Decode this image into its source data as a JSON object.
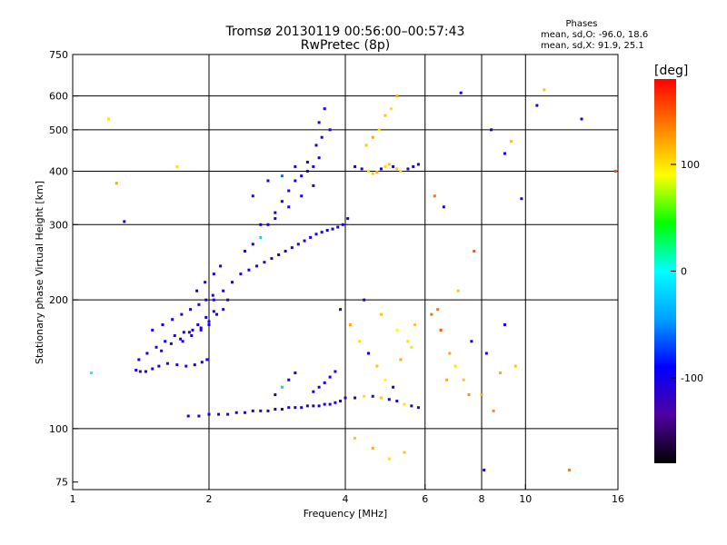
{
  "header": {
    "title": "Tromsø 20130119 00:56:00–00:57:43",
    "subtitle": "RwPretec (8p)",
    "phases_title": "Phases",
    "phases_o": "mean, sd,O:  -96.0, 18.6",
    "phases_x": "mean, sd,X:  91.9, 25.1"
  },
  "chart_data": {
    "type": "scatter",
    "title": "Tromsø 20130119 00:56:00–00:57:43",
    "subtitle": "RwPretec (8p)",
    "xlabel": "Frequency [MHz]",
    "ylabel": "Stationary phase Virtual Height [km]",
    "x_scale": "log",
    "y_scale": "log",
    "xlim": [
      1,
      16
    ],
    "ylim": [
      72,
      750
    ],
    "x_ticks": [
      1,
      2,
      4,
      6,
      8,
      10,
      16
    ],
    "y_ticks": [
      75,
      100,
      200,
      300,
      400,
      500,
      600,
      750
    ],
    "x_gridlines": [
      2,
      4,
      6,
      8,
      10
    ],
    "y_gridlines": [
      100,
      200,
      300,
      400,
      500,
      600
    ],
    "grid": true,
    "colorbar": {
      "label": "[deg]",
      "range": [
        -180,
        180
      ],
      "ticks": [
        100,
        0,
        -100
      ],
      "colors": [
        "#000000",
        "#5000a0",
        "#0000ff",
        "#00a0ff",
        "#00ffff",
        "#00ff00",
        "#ffff00",
        "#ff8000",
        "#ff0000"
      ]
    },
    "series": [
      {
        "x": [
          1.38,
          1.41,
          1.45,
          1.5,
          1.55,
          1.62,
          1.7,
          1.78,
          1.86,
          1.93,
          1.98,
          1.4,
          1.46,
          1.53,
          1.6,
          1.68,
          1.76,
          1.84,
          1.92,
          2.0,
          1.5,
          1.58,
          1.66,
          1.74,
          1.82,
          1.9,
          1.97,
          2.04,
          1.75,
          1.83,
          1.92,
          2.0,
          2.08,
          2.15,
          1.88,
          1.96,
          2.05,
          2.12,
          1.57,
          1.65,
          1.73,
          1.81,
          1.89,
          1.97,
          2.05
        ],
        "y": [
          137,
          136,
          136,
          138,
          140,
          142,
          141,
          140,
          141,
          143,
          145,
          145,
          150,
          155,
          160,
          165,
          168,
          170,
          172,
          175,
          170,
          175,
          180,
          185,
          190,
          195,
          200,
          205,
          160,
          165,
          170,
          178,
          185,
          190,
          210,
          220,
          230,
          240,
          152,
          158,
          162,
          168,
          175,
          182,
          188
        ],
        "phase": [
          -110,
          -110,
          -100,
          -110,
          -105,
          -110,
          -100,
          -110,
          -105,
          -100,
          -110,
          -100,
          -105,
          -110,
          -100,
          -110,
          -100,
          -105,
          -110,
          -100,
          -110,
          -100,
          -105,
          -110,
          -100,
          -110,
          -100,
          -105,
          -110,
          -100,
          -110,
          -105,
          -100,
          -110,
          -100,
          -105,
          -110,
          -100,
          -110,
          -105,
          -100,
          -110,
          -105,
          -100,
          -110
        ]
      },
      {
        "x": [
          2.05,
          2.15,
          2.25,
          2.35,
          2.45,
          2.55,
          2.65,
          2.75,
          2.85,
          2.95,
          3.05,
          3.15,
          3.25,
          3.35,
          3.45,
          3.55,
          3.65,
          3.75,
          3.85,
          3.95,
          4.05
        ],
        "y": [
          200,
          210,
          220,
          230,
          235,
          240,
          245,
          250,
          255,
          260,
          265,
          270,
          275,
          280,
          285,
          288,
          291,
          293,
          296,
          300,
          310
        ],
        "phase": [
          -110,
          -105,
          -100,
          -110,
          -105,
          -100,
          -110,
          -105,
          -100,
          -110,
          -105,
          -100,
          -110,
          -100,
          -105,
          -110,
          -100,
          -105,
          -110,
          -100,
          -110
        ]
      },
      {
        "x": [
          2.4,
          2.5,
          2.6,
          2.7,
          2.8,
          2.9,
          3.0,
          3.1,
          3.2,
          3.3,
          3.4,
          3.5,
          2.5,
          2.7,
          2.9,
          3.1,
          3.3,
          3.45,
          3.55,
          2.6,
          2.8,
          3.0,
          3.2,
          3.4,
          3.5,
          3.6,
          3.7
        ],
        "y": [
          260,
          270,
          280,
          300,
          320,
          340,
          360,
          380,
          390,
          400,
          410,
          430,
          350,
          380,
          390,
          410,
          420,
          460,
          480,
          300,
          310,
          330,
          350,
          370,
          520,
          560,
          500
        ],
        "phase": [
          -110,
          -100,
          -20,
          -110,
          -100,
          -105,
          -110,
          -100,
          -105,
          -110,
          -100,
          -105,
          -110,
          -100,
          -60,
          -110,
          -100,
          -105,
          -110,
          -100,
          -105,
          -110,
          -100,
          -105,
          -110,
          -100,
          -105
        ]
      },
      {
        "x": [
          4.2,
          4.35,
          4.5,
          4.6,
          4.7,
          4.8,
          4.9,
          5.0,
          5.1,
          5.2,
          5.3,
          5.5,
          5.65,
          5.8,
          4.45,
          4.6,
          4.75,
          4.9,
          5.05,
          5.2
        ],
        "y": [
          410,
          405,
          400,
          395,
          398,
          405,
          410,
          415,
          410,
          405,
          400,
          405,
          410,
          415,
          460,
          480,
          500,
          540,
          560,
          600
        ],
        "phase": [
          -110,
          -100,
          100,
          110,
          120,
          -105,
          100,
          110,
          -100,
          110,
          100,
          -110,
          -100,
          -105,
          110,
          120,
          100,
          110,
          100,
          120
        ]
      },
      {
        "x": [
          1.8,
          1.9,
          2.0,
          2.1,
          2.2,
          2.3,
          2.4,
          2.5,
          2.6,
          2.7,
          2.8,
          2.9,
          3.0,
          3.1,
          3.2,
          3.3,
          3.4,
          3.5,
          3.6,
          3.7,
          3.8,
          3.9
        ],
        "y": [
          107,
          107,
          108,
          108,
          108,
          109,
          109,
          110,
          110,
          110,
          111,
          111,
          112,
          112,
          112,
          113,
          113,
          113,
          114,
          114,
          115,
          116
        ],
        "phase": [
          -110,
          -105,
          -100,
          -110,
          -105,
          -100,
          -110,
          -105,
          -100,
          -110,
          -105,
          -100,
          -110,
          -105,
          -100,
          -110,
          -105,
          -100,
          -110,
          -105,
          -100,
          -110
        ]
      },
      {
        "x": [
          4.0,
          4.2,
          4.4,
          4.6,
          4.8,
          5.0,
          5.2,
          5.4,
          5.6,
          5.8,
          3.4,
          3.5,
          3.6,
          3.7,
          3.8,
          2.8,
          2.9,
          3.0,
          3.1
        ],
        "y": [
          118,
          118,
          119,
          119,
          118,
          117,
          116,
          114,
          113,
          112,
          122,
          125,
          128,
          132,
          136,
          120,
          125,
          130,
          135
        ],
        "phase": [
          -110,
          -100,
          100,
          -105,
          110,
          -100,
          -110,
          100,
          -105,
          -110,
          -100,
          -105,
          -110,
          -100,
          -105,
          -110,
          -20,
          -100,
          -105
        ]
      },
      {
        "x": [
          3.9,
          4.1,
          4.3,
          4.5,
          4.7,
          4.9,
          5.1,
          5.3,
          5.5,
          5.7,
          4.2,
          4.6,
          5.0,
          5.4,
          4.4,
          4.8,
          5.2,
          5.6
        ],
        "y": [
          190,
          175,
          160,
          150,
          140,
          130,
          125,
          145,
          160,
          175,
          95,
          90,
          85,
          88,
          200,
          185,
          170,
          155
        ],
        "phase": [
          -110,
          120,
          100,
          -100,
          110,
          90,
          -105,
          120,
          100,
          110,
          110,
          120,
          100,
          110,
          -100,
          110,
          90,
          100
        ]
      },
      {
        "x": [
          6.2,
          6.5,
          6.8,
          7.0,
          7.3,
          7.6,
          8.0,
          8.5,
          9.0,
          9.5,
          6.4,
          6.7,
          7.1,
          7.5,
          8.2,
          8.8
        ],
        "y": [
          185,
          170,
          150,
          140,
          130,
          160,
          120,
          110,
          175,
          140,
          190,
          130,
          210,
          120,
          150,
          135
        ],
        "phase": [
          140,
          150,
          120,
          100,
          110,
          -110,
          120,
          130,
          -100,
          110,
          140,
          120,
          110,
          130,
          -110,
          120
        ]
      },
      {
        "x": [
          1.1,
          1.2,
          1.25,
          1.3,
          1.7,
          2.2,
          6.3,
          6.6,
          7.7,
          8.4,
          9.3,
          9.8,
          10.6,
          12.5,
          13.3,
          15.8,
          11.0,
          9.0,
          8.1,
          7.2
        ],
        "y": [
          135,
          530,
          375,
          305,
          410,
          200,
          350,
          330,
          260,
          500,
          470,
          345,
          570,
          80,
          530,
          400,
          620,
          440,
          80,
          610
        ],
        "phase": [
          0,
          100,
          120,
          -100,
          100,
          -110,
          140,
          -100,
          150,
          -100,
          110,
          -100,
          -100,
          140,
          -100,
          150,
          110,
          -100,
          -110,
          -100
        ]
      }
    ]
  }
}
